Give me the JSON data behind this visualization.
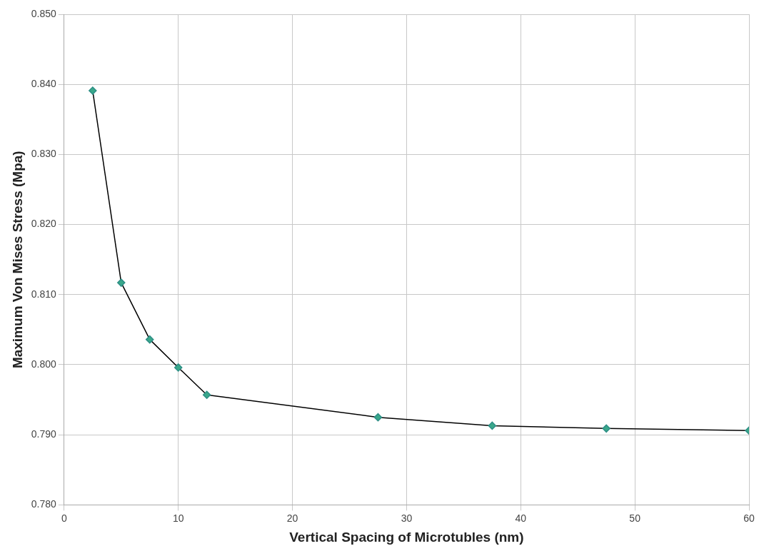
{
  "chart_data": {
    "type": "line",
    "xlabel": "Vertical Spacing of Microtubles (nm)",
    "ylabel": "Maximum Von Mises Stress (Mpa)",
    "x": [
      2.5,
      5,
      7.5,
      10,
      12.5,
      27.5,
      37.5,
      47.5,
      60
    ],
    "series": [
      {
        "color": "#000000",
        "values": [
          0.8391,
          0.8117,
          0.8036,
          0.7996,
          0.7957,
          0.7925,
          0.7913,
          0.7909,
          0.7906
        ]
      }
    ],
    "xlim": [
      0,
      60
    ],
    "xticks": [
      0,
      10,
      20,
      30,
      40,
      50,
      60
    ],
    "ylim": [
      0.78,
      0.85
    ],
    "yticks": [
      {
        "value": 0.78,
        "label": "0.780"
      },
      {
        "value": 0.79,
        "label": "0.790"
      },
      {
        "value": 0.8,
        "label": "0.800"
      },
      {
        "value": 0.81,
        "label": "0.810"
      },
      {
        "value": 0.82,
        "label": "0.820"
      },
      {
        "value": 0.83,
        "label": "0.830"
      },
      {
        "value": 0.84,
        "label": "0.840"
      },
      {
        "value": 0.85,
        "label": "0.850"
      }
    ],
    "grid": true,
    "legend": false,
    "marker": "diamond",
    "line_style": "solid"
  }
}
